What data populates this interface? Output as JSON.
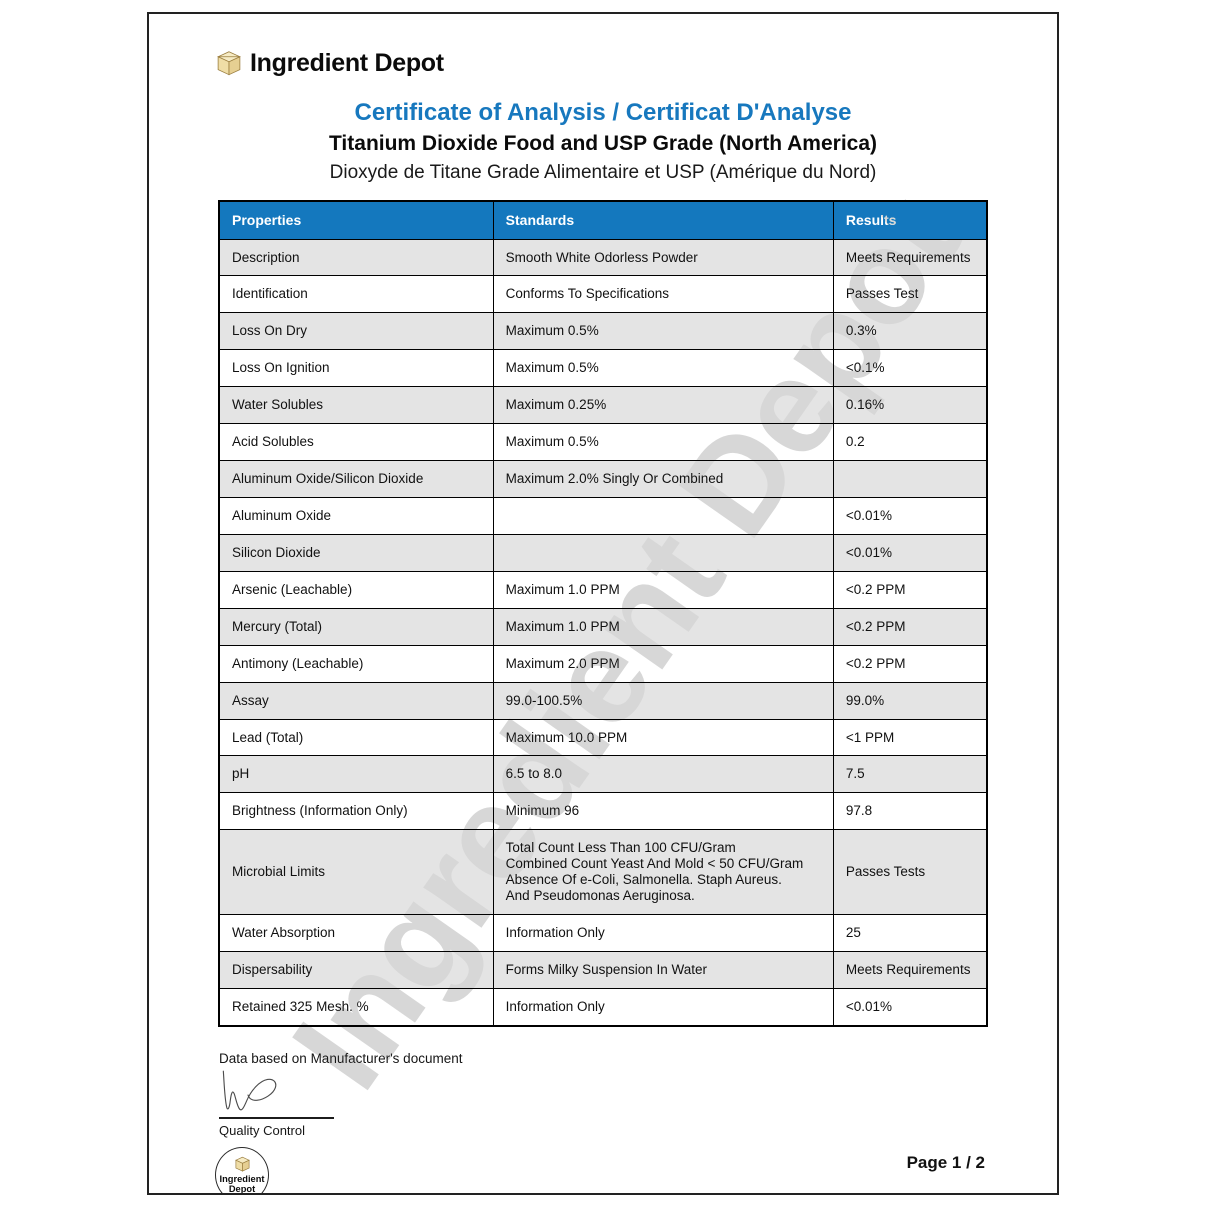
{
  "brand": {
    "name": "Ingredient Depot"
  },
  "titles": {
    "coa": "Certificate of Analysis / Certificat D'Analyse",
    "product_en": "Titanium Dioxide Food and USP Grade (North America)",
    "product_fr": "Dioxyde de Titane Grade Alimentaire et USP (Amérique du Nord)"
  },
  "colors": {
    "title_blue": "#1778be",
    "table_header_blue": "#1478be",
    "row_gray": "#e4e4e4",
    "watermark_gray": "#d7d7d7"
  },
  "watermark_text": "Ingredient Depot",
  "table": {
    "headers": [
      "Properties",
      "Standards",
      "Results"
    ],
    "rows": [
      {
        "property": "Description",
        "standard": "Smooth White Odorless Powder",
        "result": "Meets Requirements"
      },
      {
        "property": "Identification",
        "standard": "Conforms To Specifications",
        "result": "Passes Test"
      },
      {
        "property": "Loss On Dry",
        "standard": "Maximum 0.5%",
        "result": "0.3%"
      },
      {
        "property": "Loss On Ignition",
        "standard": "Maximum 0.5%",
        "result": "<0.1%"
      },
      {
        "property": "Water Solubles",
        "standard": "Maximum 0.25%",
        "result": "0.16%"
      },
      {
        "property": "Acid Solubles",
        "standard": "Maximum 0.5%",
        "result": "0.2"
      },
      {
        "property": "Aluminum Oxide/Silicon Dioxide",
        "standard": "Maximum 2.0% Singly Or Combined",
        "result": ""
      },
      {
        "property": "Aluminum Oxide",
        "standard": "",
        "result": "<0.01%",
        "indent": true
      },
      {
        "property": "Silicon Dioxide",
        "standard": "",
        "result": "<0.01%",
        "indent": true
      },
      {
        "property": "Arsenic (Leachable)",
        "standard": "Maximum 1.0 PPM",
        "result": "<0.2 PPM"
      },
      {
        "property": "Mercury (Total)",
        "standard": "Maximum 1.0 PPM",
        "result": "<0.2 PPM"
      },
      {
        "property": "Antimony (Leachable)",
        "standard": "Maximum 2.0 PPM",
        "result": "<0.2 PPM"
      },
      {
        "property": "Assay",
        "standard": "99.0-100.5%",
        "result": "99.0%"
      },
      {
        "property": "Lead (Total)",
        "standard": "Maximum 10.0 PPM",
        "result": "<1 PPM"
      },
      {
        "property": "pH",
        "standard": "6.5 to 8.0",
        "result": "7.5"
      },
      {
        "property": "Brightness (Information Only)",
        "standard": "Minimum 96",
        "result": "97.8"
      },
      {
        "property": "Microbial Limits",
        "standard": "Total Count Less Than 100 CFU/Gram\nCombined Count Yeast And Mold < 50 CFU/Gram\nAbsence Of e-Coli, Salmonella. Staph Aureus.\nAnd Pseudomonas Aeruginosa.",
        "result": "Passes Tests"
      },
      {
        "property": "Water Absorption",
        "standard": "Information Only",
        "result": "25"
      },
      {
        "property": "Dispersability",
        "standard": "Forms Milky Suspension In Water",
        "result": "Meets Requirements"
      },
      {
        "property": "Retained 325 Mesh. %",
        "standard": "Information Only",
        "result": "<0.01%"
      }
    ]
  },
  "footer": {
    "note": "Data based on Manufacturer's document",
    "signature_label": "Quality Control",
    "stamp_line1": "Ingredient",
    "stamp_line2": "Depot",
    "page_number": "Page 1 / 2"
  }
}
